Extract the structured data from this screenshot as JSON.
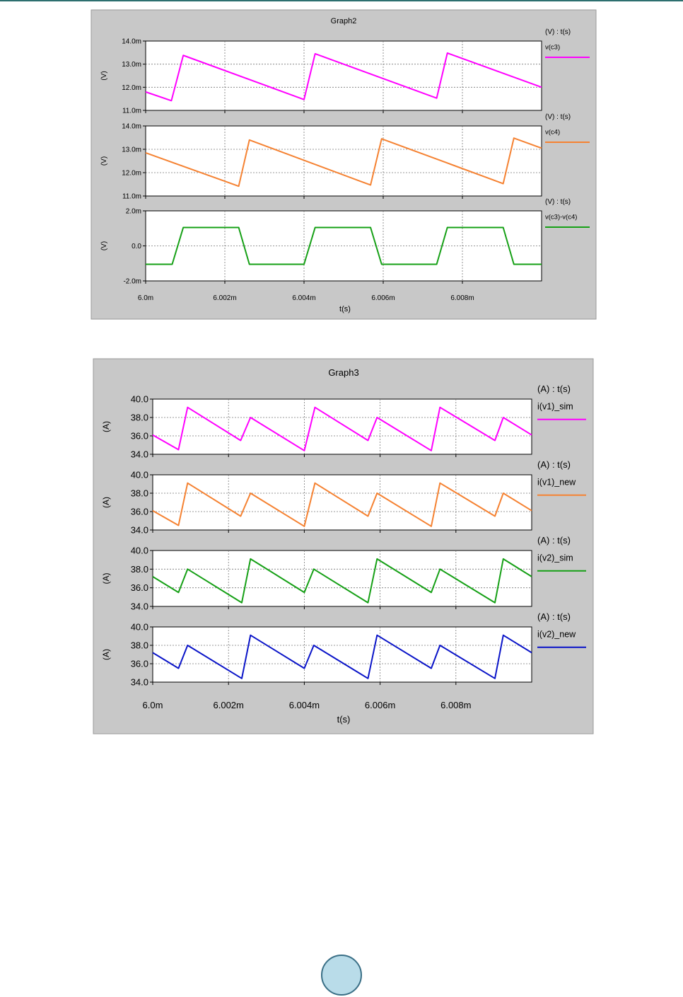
{
  "colors": {
    "panel_bg": "#c8c8c8",
    "plot_bg": "#ffffff",
    "grid": "#777777",
    "magenta": "#ff00ff",
    "orange": "#f58232",
    "green": "#16a016",
    "blue": "#0a14c8"
  },
  "chart_data": [
    {
      "type": "line",
      "title": "Graph2",
      "xlabel": "t(s)",
      "xlim": [
        6.0,
        6.01
      ],
      "xtick_values": [
        6.0,
        6.002,
        6.004,
        6.006,
        6.008
      ],
      "xtick_labels": [
        "6.0m",
        "6.002m",
        "6.004m",
        "6.006m",
        "6.008m"
      ],
      "grid": true,
      "legend_position": "right",
      "subplots": [
        {
          "header": "(V) : t(s)",
          "ylabel": "(V)",
          "ylim": [
            11.0,
            14.0
          ],
          "ytick_values": [
            11.0,
            12.0,
            13.0,
            14.0
          ],
          "ytick_labels": [
            "11.0m",
            "12.0m",
            "13.0m",
            "14.0m"
          ],
          "series": [
            {
              "name": "v(c3)",
              "color": "#ff00ff",
              "x": [
                6.0,
                6.00065,
                6.00095,
                6.004,
                6.00428,
                6.00735,
                6.00762,
                6.01
              ],
              "y": [
                11.8,
                11.42,
                13.38,
                11.47,
                13.45,
                11.53,
                13.48,
                12.0
              ]
            }
          ]
        },
        {
          "header": "(V) : t(s)",
          "ylabel": "(V)",
          "ylim": [
            11.0,
            14.0
          ],
          "ytick_values": [
            11.0,
            12.0,
            13.0,
            14.0
          ],
          "ytick_labels": [
            "11.0m",
            "12.0m",
            "13.0m",
            "14.0m"
          ],
          "series": [
            {
              "name": "v(c4)",
              "color": "#f58232",
              "x": [
                6.0,
                6.00235,
                6.00262,
                6.00568,
                6.00596,
                6.00903,
                6.0093,
                6.01
              ],
              "y": [
                12.85,
                11.42,
                13.4,
                11.47,
                13.45,
                11.53,
                13.48,
                13.05
              ]
            }
          ]
        },
        {
          "header": "(V) : t(s)",
          "ylabel": "(V)",
          "ylim": [
            -2.0,
            2.0
          ],
          "ytick_values": [
            -2.0,
            0.0,
            2.0
          ],
          "ytick_labels": [
            "-2.0m",
            "0.0",
            "2.0m"
          ],
          "series": [
            {
              "name": "v(c3)-v(c4)",
              "color": "#16a016",
              "x": [
                6.0,
                6.00067,
                6.00095,
                6.00235,
                6.00262,
                6.004,
                6.00428,
                6.00568,
                6.00596,
                6.00735,
                6.00762,
                6.00903,
                6.0093,
                6.01
              ],
              "y": [
                -1.05,
                -1.05,
                1.05,
                1.05,
                -1.05,
                -1.05,
                1.05,
                1.05,
                -1.05,
                -1.05,
                1.05,
                1.05,
                -1.05,
                -1.05
              ]
            }
          ]
        }
      ]
    },
    {
      "type": "line",
      "title": "Graph3",
      "xlabel": "t(s)",
      "xlim": [
        6.0,
        6.01
      ],
      "xtick_values": [
        6.0,
        6.002,
        6.004,
        6.006,
        6.008
      ],
      "xtick_labels": [
        "6.0m",
        "6.002m",
        "6.004m",
        "6.006m",
        "6.008m"
      ],
      "grid": true,
      "legend_position": "right",
      "subplots": [
        {
          "header": "(A) : t(s)",
          "ylabel": "(A)",
          "ylim": [
            34.0,
            40.0
          ],
          "ytick_values": [
            34.0,
            36.0,
            38.0,
            40.0
          ],
          "ytick_labels": [
            "34.0",
            "36.0",
            "38.0",
            "40.0"
          ],
          "series": [
            {
              "name": "i(v1)_sim",
              "color": "#ff00ff",
              "x": [
                6.0,
                6.00068,
                6.00092,
                6.00232,
                6.00258,
                6.004,
                6.00428,
                6.00568,
                6.00592,
                6.00735,
                6.00758,
                6.00903,
                6.00925,
                6.01
              ],
              "y": [
                36.1,
                34.5,
                39.1,
                35.5,
                38.0,
                34.4,
                39.1,
                35.5,
                38.0,
                34.4,
                39.1,
                35.5,
                38.0,
                36.1
              ]
            }
          ]
        },
        {
          "header": "(A) : t(s)",
          "ylabel": "(A)",
          "ylim": [
            34.0,
            40.0
          ],
          "ytick_values": [
            34.0,
            36.0,
            38.0,
            40.0
          ],
          "ytick_labels": [
            "34.0",
            "36.0",
            "38.0",
            "40.0"
          ],
          "series": [
            {
              "name": "i(v1)_new",
              "color": "#f58232",
              "x": [
                6.0,
                6.00068,
                6.00092,
                6.00232,
                6.00258,
                6.004,
                6.00428,
                6.00568,
                6.00592,
                6.00735,
                6.00758,
                6.00903,
                6.00925,
                6.01
              ],
              "y": [
                36.1,
                34.5,
                39.1,
                35.5,
                38.0,
                34.4,
                39.1,
                35.5,
                38.0,
                34.4,
                39.1,
                35.5,
                38.0,
                36.1
              ]
            }
          ]
        },
        {
          "header": "(A) : t(s)",
          "ylabel": "(A)",
          "ylim": [
            34.0,
            40.0
          ],
          "ytick_values": [
            34.0,
            36.0,
            38.0,
            40.0
          ],
          "ytick_labels": [
            "34.0",
            "36.0",
            "38.0",
            "40.0"
          ],
          "series": [
            {
              "name": "i(v2)_sim",
              "color": "#16a016",
              "x": [
                6.0,
                6.00068,
                6.00092,
                6.00235,
                6.00258,
                6.004,
                6.00425,
                6.00568,
                6.00592,
                6.00735,
                6.00758,
                6.00903,
                6.00925,
                6.01
              ],
              "y": [
                37.2,
                35.5,
                38.0,
                34.4,
                39.1,
                35.5,
                38.0,
                34.4,
                39.1,
                35.5,
                38.0,
                34.4,
                39.1,
                37.2
              ]
            }
          ]
        },
        {
          "header": "(A) : t(s)",
          "ylabel": "(A)",
          "ylim": [
            34.0,
            40.0
          ],
          "ytick_values": [
            34.0,
            36.0,
            38.0,
            40.0
          ],
          "ytick_labels": [
            "34.0",
            "36.0",
            "38.0",
            "40.0"
          ],
          "series": [
            {
              "name": "i(v2)_new",
              "color": "#0a14c8",
              "x": [
                6.0,
                6.00068,
                6.00092,
                6.00235,
                6.00258,
                6.004,
                6.00425,
                6.00568,
                6.00592,
                6.00735,
                6.00758,
                6.00903,
                6.00925,
                6.01
              ],
              "y": [
                37.2,
                35.5,
                38.0,
                34.4,
                39.1,
                35.5,
                38.0,
                34.4,
                39.1,
                35.5,
                38.0,
                34.4,
                39.1,
                37.2
              ]
            }
          ]
        }
      ]
    }
  ]
}
